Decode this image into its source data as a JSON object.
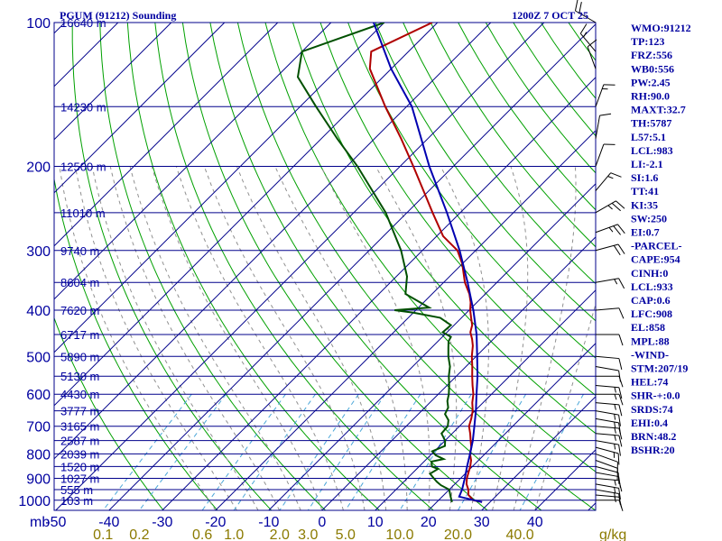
{
  "chart_data": {
    "type": "line",
    "title": "PGUM (91212) Sounding",
    "valid_time": "1200Z  7 OCT 25",
    "pressure_axis_label": "mb",
    "temperature_axis_ticks": [
      "-50",
      "-40",
      "-30",
      "-20",
      "-10",
      "0",
      "10",
      "20",
      "30",
      "40"
    ],
    "temperature_tick_values": [
      -50,
      -40,
      -30,
      -20,
      -10,
      0,
      10,
      20,
      30,
      40
    ],
    "mixing_ratio_ticks": [
      "0.1",
      "0.2",
      "0.6",
      "1.0",
      "2.0",
      "3.0",
      "5.0",
      "10.0",
      "20.0",
      "40.0"
    ],
    "mixing_ratio_values": [
      0.1,
      0.2,
      0.6,
      1.0,
      2.0,
      3.0,
      5.0,
      10.0,
      20.0,
      40.0
    ],
    "mixing_ratio_unit": "g/kg",
    "pressure_ticks": [
      "100",
      "200",
      "300",
      "400",
      "500",
      "600",
      "700",
      "800",
      "900",
      "1000"
    ],
    "pressure_tick_values": [
      100,
      200,
      300,
      400,
      500,
      600,
      700,
      800,
      900,
      1000
    ],
    "height_levels": [
      {
        "p": 100,
        "label": "16640 m"
      },
      {
        "p": 150,
        "label": "14230 m"
      },
      {
        "p": 200,
        "label": "12500 m"
      },
      {
        "p": 250,
        "label": "11010 m"
      },
      {
        "p": 300,
        "label": "9740 m"
      },
      {
        "p": 350,
        "label": "8604 m"
      },
      {
        "p": 400,
        "label": "7620 m"
      },
      {
        "p": 450,
        "label": "6717 m"
      },
      {
        "p": 500,
        "label": "5890 m"
      },
      {
        "p": 550,
        "label": "5130 m"
      },
      {
        "p": 600,
        "label": "4430 m"
      },
      {
        "p": 650,
        "label": "3777 m"
      },
      {
        "p": 700,
        "label": "3165 m"
      },
      {
        "p": 750,
        "label": "2587 m"
      },
      {
        "p": 800,
        "label": "2039 m"
      },
      {
        "p": 850,
        "label": "1520 m"
      },
      {
        "p": 900,
        "label": "1027 m"
      },
      {
        "p": 950,
        "label": "555 m"
      },
      {
        "p": 1000,
        "label": "103 m"
      }
    ],
    "series": [
      {
        "name": "Temperature",
        "color": "#b00000",
        "points": [
          {
            "p": 1009,
            "t": 28.5
          },
          {
            "p": 1000,
            "t": 26.5
          },
          {
            "p": 975,
            "t": 24.6
          },
          {
            "p": 950,
            "t": 23.6
          },
          {
            "p": 925,
            "t": 22.2
          },
          {
            "p": 900,
            "t": 21.2
          },
          {
            "p": 875,
            "t": 20.4
          },
          {
            "p": 850,
            "t": 19.6
          },
          {
            "p": 825,
            "t": 18.6
          },
          {
            "p": 800,
            "t": 17.2
          },
          {
            "p": 775,
            "t": 16.2
          },
          {
            "p": 750,
            "t": 14.8
          },
          {
            "p": 725,
            "t": 13.4
          },
          {
            "p": 700,
            "t": 11.8
          },
          {
            "p": 675,
            "t": 10.8
          },
          {
            "p": 650,
            "t": 9.6
          },
          {
            "p": 625,
            "t": 8.0
          },
          {
            "p": 600,
            "t": 6.6
          },
          {
            "p": 575,
            "t": 4.8
          },
          {
            "p": 550,
            "t": 3.0
          },
          {
            "p": 525,
            "t": 1.2
          },
          {
            "p": 500,
            "t": -0.8
          },
          {
            "p": 475,
            "t": -2.6
          },
          {
            "p": 460,
            "t": -4.0
          },
          {
            "p": 445,
            "t": -5.6
          },
          {
            "p": 430,
            "t": -6.6
          },
          {
            "p": 415,
            "t": -8.2
          },
          {
            "p": 400,
            "t": -9.8
          },
          {
            "p": 385,
            "t": -11.2
          },
          {
            "p": 370,
            "t": -13.0
          },
          {
            "p": 350,
            "t": -16.0
          },
          {
            "p": 320,
            "t": -20.0
          },
          {
            "p": 300,
            "t": -23.4
          },
          {
            "p": 280,
            "t": -28.8
          },
          {
            "p": 250,
            "t": -35.2
          },
          {
            "p": 225,
            "t": -41.0
          },
          {
            "p": 200,
            "t": -47.5
          },
          {
            "p": 175,
            "t": -55.0
          },
          {
            "p": 150,
            "t": -64.0
          },
          {
            "p": 125,
            "t": -74.0
          },
          {
            "p": 115,
            "t": -77.0
          },
          {
            "p": 100,
            "t": -71.0
          }
        ]
      },
      {
        "name": "Dewpoint",
        "color": "#005000",
        "points": [
          {
            "p": 1009,
            "t": 22.9
          },
          {
            "p": 1000,
            "t": 22.4
          },
          {
            "p": 975,
            "t": 21.2
          },
          {
            "p": 950,
            "t": 20.0
          },
          {
            "p": 930,
            "t": 17.6
          },
          {
            "p": 915,
            "t": 16.2
          },
          {
            "p": 900,
            "t": 15.0
          },
          {
            "p": 880,
            "t": 13.4
          },
          {
            "p": 860,
            "t": 14.0
          },
          {
            "p": 850,
            "t": 12.4
          },
          {
            "p": 830,
            "t": 11.4
          },
          {
            "p": 820,
            "t": 13.2
          },
          {
            "p": 805,
            "t": 11.0
          },
          {
            "p": 790,
            "t": 9.6
          },
          {
            "p": 770,
            "t": 11.0
          },
          {
            "p": 750,
            "t": 10.0
          },
          {
            "p": 725,
            "t": 8.0
          },
          {
            "p": 700,
            "t": 7.8
          },
          {
            "p": 680,
            "t": 6.8
          },
          {
            "p": 660,
            "t": 5.0
          },
          {
            "p": 640,
            "t": 4.4
          },
          {
            "p": 620,
            "t": 3.0
          },
          {
            "p": 600,
            "t": 2.0
          },
          {
            "p": 575,
            "t": 0.4
          },
          {
            "p": 550,
            "t": -1.4
          },
          {
            "p": 525,
            "t": -3.0
          },
          {
            "p": 500,
            "t": -5.2
          },
          {
            "p": 480,
            "t": -6.8
          },
          {
            "p": 465,
            "t": -8.0
          },
          {
            "p": 455,
            "t": -8.4
          },
          {
            "p": 445,
            "t": -10.8
          },
          {
            "p": 430,
            "t": -10.6
          },
          {
            "p": 415,
            "t": -14.0
          },
          {
            "p": 405,
            "t": -20.0
          },
          {
            "p": 400,
            "t": -24.0
          },
          {
            "p": 395,
            "t": -18.0
          },
          {
            "p": 370,
            "t": -25.0
          },
          {
            "p": 340,
            "t": -28.0
          },
          {
            "p": 300,
            "t": -34.0
          },
          {
            "p": 250,
            "t": -44.0
          },
          {
            "p": 200,
            "t": -58.0
          },
          {
            "p": 175,
            "t": -67.0
          },
          {
            "p": 150,
            "t": -77.0
          },
          {
            "p": 130,
            "t": -86.0
          },
          {
            "p": 115,
            "t": -90.0
          },
          {
            "p": 100,
            "t": -80.0
          }
        ]
      },
      {
        "name": "Parcel",
        "color": "#0000b0",
        "points": [
          {
            "p": 1009,
            "t": 28.5
          },
          {
            "p": 983,
            "t": 23.2
          },
          {
            "p": 950,
            "t": 22.4
          },
          {
            "p": 900,
            "t": 20.8
          },
          {
            "p": 850,
            "t": 19.0
          },
          {
            "p": 800,
            "t": 17.2
          },
          {
            "p": 750,
            "t": 15.2
          },
          {
            "p": 700,
            "t": 12.8
          },
          {
            "p": 650,
            "t": 10.2
          },
          {
            "p": 600,
            "t": 7.2
          },
          {
            "p": 550,
            "t": 4.0
          },
          {
            "p": 500,
            "t": 0.2
          },
          {
            "p": 450,
            "t": -4.0
          },
          {
            "p": 400,
            "t": -9.2
          },
          {
            "p": 350,
            "t": -15.5
          },
          {
            "p": 300,
            "t": -23.0
          },
          {
            "p": 250,
            "t": -32.5
          },
          {
            "p": 200,
            "t": -44.5
          },
          {
            "p": 150,
            "t": -59.0
          },
          {
            "p": 125,
            "t": -70.0
          },
          {
            "p": 100,
            "t": -82.0
          }
        ]
      }
    ],
    "wind_barbs": [
      {
        "p": 1000,
        "dir": 90,
        "spd": 10
      },
      {
        "p": 975,
        "dir": 95,
        "spd": 15
      },
      {
        "p": 950,
        "dir": 100,
        "spd": 15
      },
      {
        "p": 925,
        "dir": 100,
        "spd": 15
      },
      {
        "p": 900,
        "dir": 95,
        "spd": 15
      },
      {
        "p": 875,
        "dir": 100,
        "spd": 10
      },
      {
        "p": 850,
        "dir": 105,
        "spd": 10
      },
      {
        "p": 825,
        "dir": 110,
        "spd": 10
      },
      {
        "p": 800,
        "dir": 110,
        "spd": 10
      },
      {
        "p": 775,
        "dir": 105,
        "spd": 15
      },
      {
        "p": 750,
        "dir": 100,
        "spd": 15
      },
      {
        "p": 725,
        "dir": 95,
        "spd": 15
      },
      {
        "p": 700,
        "dir": 95,
        "spd": 15
      },
      {
        "p": 675,
        "dir": 100,
        "spd": 15
      },
      {
        "p": 650,
        "dir": 100,
        "spd": 15
      },
      {
        "p": 625,
        "dir": 95,
        "spd": 15
      },
      {
        "p": 600,
        "dir": 90,
        "spd": 15
      },
      {
        "p": 575,
        "dir": 95,
        "spd": 15
      },
      {
        "p": 550,
        "dir": 90,
        "spd": 10
      },
      {
        "p": 525,
        "dir": 100,
        "spd": 10
      },
      {
        "p": 500,
        "dir": 95,
        "spd": 10
      },
      {
        "p": 450,
        "dir": 90,
        "spd": 10
      },
      {
        "p": 400,
        "dir": 85,
        "spd": 10
      },
      {
        "p": 350,
        "dir": 80,
        "spd": 15
      },
      {
        "p": 300,
        "dir": 75,
        "spd": 20
      },
      {
        "p": 275,
        "dir": 70,
        "spd": 25
      },
      {
        "p": 250,
        "dir": 60,
        "spd": 25
      },
      {
        "p": 225,
        "dir": 40,
        "spd": 15
      },
      {
        "p": 200,
        "dir": 20,
        "spd": 10
      },
      {
        "p": 175,
        "dir": 10,
        "spd": 10
      },
      {
        "p": 150,
        "dir": 20,
        "spd": 15
      },
      {
        "p": 125,
        "dir": 340,
        "spd": 10
      },
      {
        "p": 115,
        "dir": 320,
        "spd": 15
      },
      {
        "p": 100,
        "dir": 300,
        "spd": 20
      }
    ],
    "indices": [
      "WMO:91212",
      "TP:123",
      "FRZ:556",
      "WB0:556",
      "PW:2.45",
      "RH:90.0",
      "MAXT:32.7",
      "TH:5787",
      "L57:5.1",
      "LCL:983",
      "LI:-2.1",
      "SI:1.6",
      "TT:41",
      "KI:35",
      "SW:250",
      "EI:0.7",
      "-PARCEL-",
      "CAPE:954",
      "CINH:0",
      "LCL:933",
      "CAP:0.6",
      "LFC:908",
      "EL:858",
      "MPL:88",
      "-WIND-",
      "STM:207/19",
      "HEL:74",
      "SHR-+:0.0",
      "SRDS:74",
      "EHI:0.4",
      "BRN:48.2",
      "BSHR:20"
    ],
    "colors": {
      "isobar": "#00008b",
      "isotherm": "#00008b",
      "dry_adiabat": "#00a000",
      "moist_adiabat": "#909090",
      "mixing_ratio": "#4aa6d8",
      "label": "#0000a0",
      "mixing_label": "#8b7a00"
    }
  }
}
